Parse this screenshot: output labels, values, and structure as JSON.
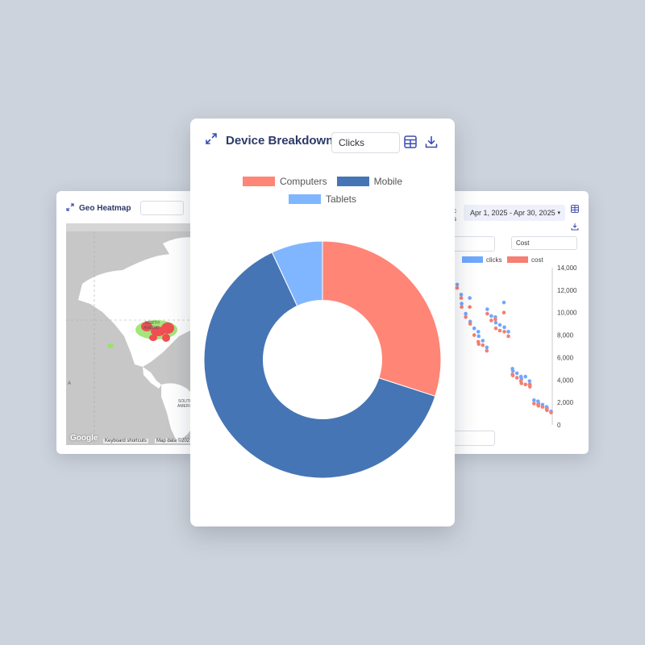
{
  "geo_card": {
    "title": "Geo Heatmap",
    "map_labels": {
      "north": "NORTH",
      "north2": "AMERIC",
      "south": "SOUTH",
      "south2": "AMERI",
      "left_letter": "A"
    },
    "google": "Google",
    "keyboard_shortcuts": "Keyboard shortcuts",
    "map_data": "Map data ©202"
  },
  "device_card": {
    "title": "Device Breakdown",
    "metric_value": "Clicks",
    "legend": [
      {
        "label": "Computers",
        "color": "#ff8577"
      },
      {
        "label": "Mobile",
        "color": "#4575b4"
      },
      {
        "label": "Tablets",
        "color": "#80b6ff"
      }
    ]
  },
  "scatter_card": {
    "clipped_label_1": "c",
    "clipped_label_2": "s",
    "date_range": "Apr 1, 2025 - Apr 30, 2025",
    "caret": "▾",
    "cost_select": "Cost",
    "legend": [
      {
        "label": "clicks",
        "color": "#6fa8ff"
      },
      {
        "label": "cost",
        "color": "#f47f72"
      }
    ],
    "y_ticks": [
      "14,000",
      "12,000",
      "10,000",
      "8,000",
      "6,000",
      "4,000",
      "2,000",
      "0"
    ]
  },
  "chart_data": [
    {
      "type": "pie",
      "categories": [
        "Computers",
        "Mobile",
        "Tablets"
      ],
      "values": [
        30,
        63,
        7
      ],
      "colors": [
        "#ff8577",
        "#4575b4",
        "#80b6ff"
      ],
      "inner_radius_ratio": 0.5,
      "legend": "top"
    },
    {
      "type": "scatter",
      "ylim": [
        0,
        14000
      ],
      "y_ticks": [
        14000,
        12000,
        10000,
        8000,
        6000,
        4000,
        2000,
        0
      ],
      "series": [
        {
          "name": "clicks",
          "color": "#6fa8ff",
          "values": [
            12300,
            12500,
            11600,
            10800,
            9900,
            11300,
            9200,
            8600,
            8300,
            7900,
            7500,
            6900,
            10300,
            9700,
            9600,
            9100,
            8900,
            10900,
            8700,
            8300,
            5000,
            4800,
            4600,
            4300,
            4100,
            4300,
            3900,
            3600,
            2200,
            2100,
            1900,
            1800,
            1600,
            1500,
            1200
          ]
        },
        {
          "name": "cost",
          "color": "#f47f72",
          "values": [
            12100,
            12200,
            11300,
            10500,
            9600,
            10500,
            9000,
            8000,
            7400,
            7200,
            7100,
            6600,
            9900,
            9300,
            9400,
            8600,
            8400,
            10000,
            8300,
            7900,
            4500,
            4400,
            4200,
            3900,
            3700,
            3600,
            3600,
            3400,
            1900,
            1800,
            1700,
            1600,
            1400,
            1300,
            1100
          ]
        }
      ]
    }
  ]
}
